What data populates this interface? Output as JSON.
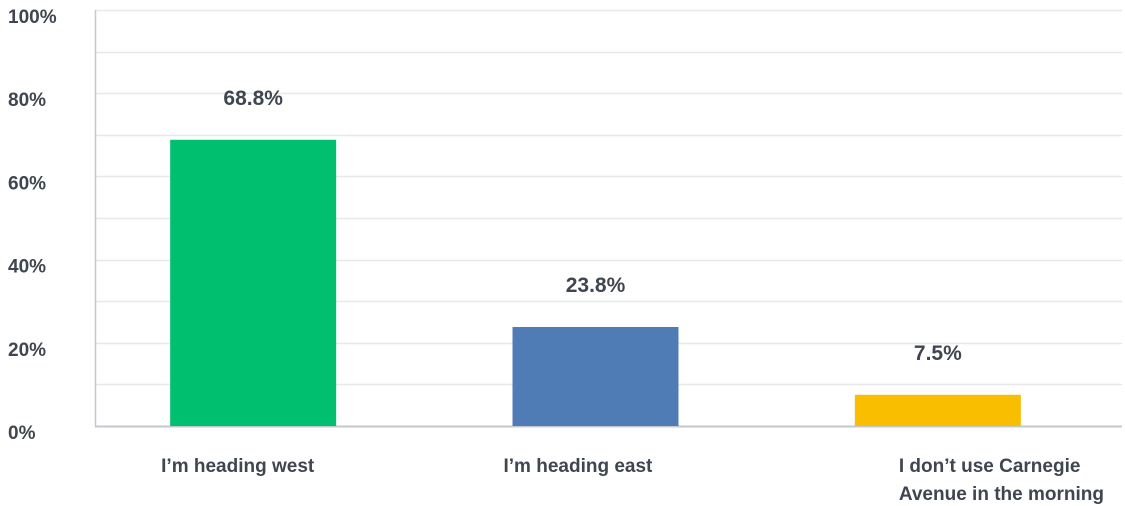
{
  "chart_data": {
    "type": "bar",
    "title": "",
    "xlabel": "",
    "ylabel": "",
    "ylim": [
      0,
      100
    ],
    "yticks": [
      "0%",
      "20%",
      "40%",
      "60%",
      "80%",
      "100%"
    ],
    "ytick_values": [
      0,
      20,
      40,
      60,
      80,
      100
    ],
    "minor_gridlines": true,
    "grid": true,
    "categories": [
      [
        "I’m heading west"
      ],
      [
        "I’m heading east"
      ],
      [
        "I don’t use Carnegie",
        "Avenue in the morning"
      ]
    ],
    "values": [
      68.8,
      23.8,
      7.5
    ],
    "value_labels": [
      "68.8%",
      "23.8%",
      "7.5%"
    ],
    "colors": [
      "#00bf6f",
      "#507cb6",
      "#f9be00"
    ]
  },
  "style": {
    "gridline_color": "#e6e9ec",
    "axis_color": "#c4c8cc",
    "text_color": "#3f4650"
  }
}
